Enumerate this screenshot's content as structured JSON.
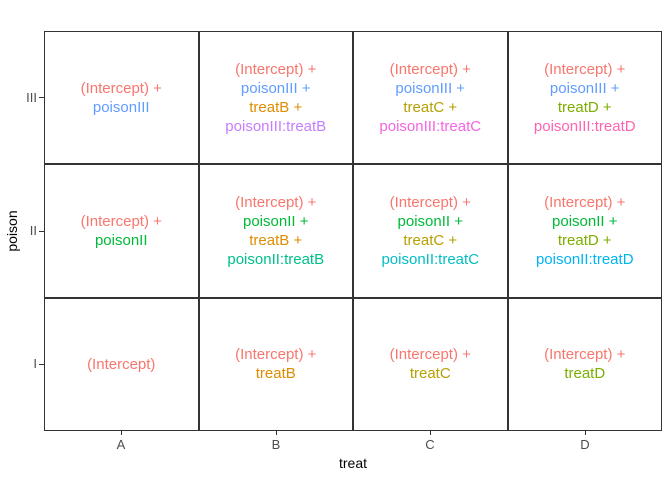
{
  "chart_data": {
    "type": "table",
    "title": "",
    "xlabel": "treat",
    "ylabel": "poison",
    "x_categories": [
      "A",
      "B",
      "C",
      "D"
    ],
    "y_categories_top_to_bottom": [
      "III",
      "II",
      "I"
    ],
    "panel_border_color": "#333333",
    "tick_color": "#333333",
    "tick_label_color": "#4d4d4d",
    "axis_title_color": "#000000",
    "background_color": "#ffffff",
    "term_colors": {
      "(Intercept)": "#F8766D",
      "treatB": "#DE8C00",
      "treatC": "#B79F00",
      "treatD": "#7CAE00",
      "poisonII": "#00BA38",
      "poisonII:treatB": "#00C08B",
      "poisonII:treatC": "#00BFC4",
      "poisonII:treatD": "#00B4F0",
      "poisonIII": "#619CFF",
      "poisonIII:treatB": "#C77CFF",
      "poisonIII:treatC": "#F564E3",
      "poisonIII:treatD": "#FF64B0"
    },
    "cells": [
      {
        "poison": "III",
        "treat": "A",
        "lines": [
          {
            "text": "(Intercept) +",
            "term": "(Intercept)"
          },
          {
            "text": "poisonIII",
            "term": "poisonIII"
          }
        ]
      },
      {
        "poison": "III",
        "treat": "B",
        "lines": [
          {
            "text": "(Intercept) +",
            "term": "(Intercept)"
          },
          {
            "text": "poisonIII +",
            "term": "poisonIII"
          },
          {
            "text": "treatB +",
            "term": "treatB"
          },
          {
            "text": "poisonIII:treatB",
            "term": "poisonIII:treatB"
          }
        ]
      },
      {
        "poison": "III",
        "treat": "C",
        "lines": [
          {
            "text": "(Intercept) +",
            "term": "(Intercept)"
          },
          {
            "text": "poisonIII +",
            "term": "poisonIII"
          },
          {
            "text": "treatC +",
            "term": "treatC"
          },
          {
            "text": "poisonIII:treatC",
            "term": "poisonIII:treatC"
          }
        ]
      },
      {
        "poison": "III",
        "treat": "D",
        "lines": [
          {
            "text": "(Intercept) +",
            "term": "(Intercept)"
          },
          {
            "text": "poisonIII +",
            "term": "poisonIII"
          },
          {
            "text": "treatD +",
            "term": "treatD"
          },
          {
            "text": "poisonIII:treatD",
            "term": "poisonIII:treatD"
          }
        ]
      },
      {
        "poison": "II",
        "treat": "A",
        "lines": [
          {
            "text": "(Intercept) +",
            "term": "(Intercept)"
          },
          {
            "text": "poisonII",
            "term": "poisonII"
          }
        ]
      },
      {
        "poison": "II",
        "treat": "B",
        "lines": [
          {
            "text": "(Intercept) +",
            "term": "(Intercept)"
          },
          {
            "text": "poisonII +",
            "term": "poisonII"
          },
          {
            "text": "treatB +",
            "term": "treatB"
          },
          {
            "text": "poisonII:treatB",
            "term": "poisonII:treatB"
          }
        ]
      },
      {
        "poison": "II",
        "treat": "C",
        "lines": [
          {
            "text": "(Intercept) +",
            "term": "(Intercept)"
          },
          {
            "text": "poisonII +",
            "term": "poisonII"
          },
          {
            "text": "treatC +",
            "term": "treatC"
          },
          {
            "text": "poisonII:treatC",
            "term": "poisonII:treatC"
          }
        ]
      },
      {
        "poison": "II",
        "treat": "D",
        "lines": [
          {
            "text": "(Intercept) +",
            "term": "(Intercept)"
          },
          {
            "text": "poisonII +",
            "term": "poisonII"
          },
          {
            "text": "treatD +",
            "term": "treatD"
          },
          {
            "text": "poisonII:treatD",
            "term": "poisonII:treatD"
          }
        ]
      },
      {
        "poison": "I",
        "treat": "A",
        "lines": [
          {
            "text": "(Intercept)",
            "term": "(Intercept)"
          }
        ]
      },
      {
        "poison": "I",
        "treat": "B",
        "lines": [
          {
            "text": "(Intercept) +",
            "term": "(Intercept)"
          },
          {
            "text": "treatB",
            "term": "treatB"
          }
        ]
      },
      {
        "poison": "I",
        "treat": "C",
        "lines": [
          {
            "text": "(Intercept) +",
            "term": "(Intercept)"
          },
          {
            "text": "treatC",
            "term": "treatC"
          }
        ]
      },
      {
        "poison": "I",
        "treat": "D",
        "lines": [
          {
            "text": "(Intercept) +",
            "term": "(Intercept)"
          },
          {
            "text": "treatD",
            "term": "treatD"
          }
        ]
      }
    ]
  }
}
